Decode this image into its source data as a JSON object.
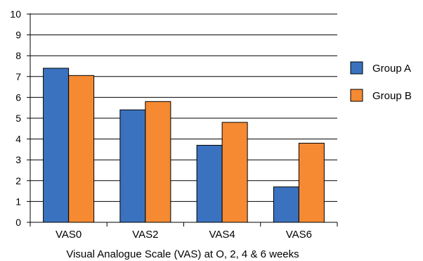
{
  "chart_data": {
    "type": "bar",
    "title": "",
    "xlabel": "Visual Analogue Scale (VAS) at O, 2, 4 & 6 weeks",
    "ylabel": "",
    "categories": [
      "VAS0",
      "VAS2",
      "VAS4",
      "VAS6"
    ],
    "ylim": [
      0,
      10
    ],
    "yticks": [
      "0",
      "1",
      "2",
      "3",
      "4",
      "5",
      "6",
      "7",
      "8",
      "9",
      "10"
    ],
    "grid": true,
    "legend_position": "right",
    "series": [
      {
        "name": "Group A",
        "color": "#3a72bf",
        "values": [
          7.4,
          5.4,
          3.7,
          1.7
        ]
      },
      {
        "name": "Group B",
        "color": "#f58a33",
        "values": [
          7.05,
          5.8,
          4.8,
          3.8
        ]
      }
    ]
  }
}
